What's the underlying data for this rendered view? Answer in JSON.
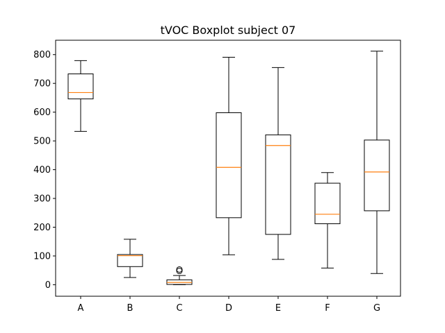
{
  "chart_data": {
    "type": "boxplot",
    "title": "tVOC Boxplot subject 07",
    "xlabel": "",
    "ylabel": "",
    "categories": [
      "A",
      "B",
      "C",
      "D",
      "E",
      "F",
      "G"
    ],
    "ylim": [
      -40,
      850
    ],
    "yticks": [
      0,
      100,
      200,
      300,
      400,
      500,
      600,
      700,
      800
    ],
    "grid": false,
    "colors": {
      "box": "#000000",
      "median": "#ff7f0e",
      "flier": "#000000"
    },
    "boxes": [
      {
        "label": "A",
        "whisker_low": 533,
        "q1": 646,
        "median": 668,
        "q3": 733,
        "whisker_high": 779,
        "fliers": []
      },
      {
        "label": "B",
        "whisker_low": 25,
        "q1": 63,
        "median": 101,
        "q3": 105,
        "whisker_high": 158,
        "fliers": []
      },
      {
        "label": "C",
        "whisker_low": 0,
        "q1": 1,
        "median": 8,
        "q3": 17,
        "whisker_high": 32,
        "fliers": [
          48,
          53
        ]
      },
      {
        "label": "D",
        "whisker_low": 104,
        "q1": 233,
        "median": 408,
        "q3": 598,
        "whisker_high": 791,
        "fliers": []
      },
      {
        "label": "E",
        "whisker_low": 88,
        "q1": 175,
        "median": 484,
        "q3": 521,
        "whisker_high": 755,
        "fliers": []
      },
      {
        "label": "F",
        "whisker_low": 58,
        "q1": 212,
        "median": 245,
        "q3": 353,
        "whisker_high": 390,
        "fliers": []
      },
      {
        "label": "G",
        "whisker_low": 39,
        "q1": 257,
        "median": 392,
        "q3": 503,
        "whisker_high": 812,
        "fliers": []
      }
    ]
  }
}
